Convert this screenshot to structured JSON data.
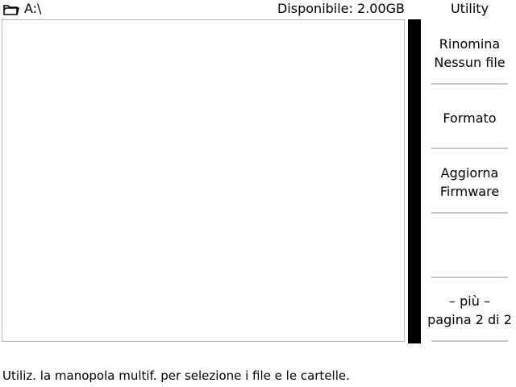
{
  "header": {
    "folder_icon": "folder-icon",
    "path": "A:\\",
    "free_space": "Disponibile: 2.00GB"
  },
  "menu": {
    "title": "Utility",
    "softkeys": [
      {
        "line1": "Rinomina",
        "line2": "Nessun file"
      },
      {
        "line1": "Formato",
        "line2": ""
      },
      {
        "line1": "Aggiorna",
        "line2": "Firmware"
      },
      {
        "line1": "",
        "line2": ""
      },
      {
        "line1": "– più –",
        "line2": "pagina 2 di 2"
      }
    ]
  },
  "status": {
    "message": "Utiliz. la manopola multif. per selezione i file e le cartelle."
  },
  "colors": {
    "background": "#ffffff",
    "text": "#000000",
    "scrollbar": "#000000",
    "separator": "#c8c8c8",
    "pane_border": "#b8b8b8"
  }
}
